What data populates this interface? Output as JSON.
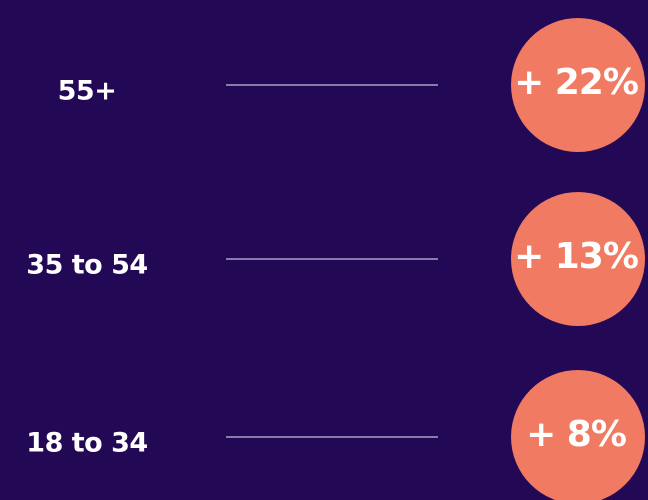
{
  "rows": [
    {
      "label": "55+",
      "value": "+ 22%"
    },
    {
      "label": "35 to 54",
      "value": "+ 13%"
    },
    {
      "label": "18 to 34",
      "value": "+ 8%"
    }
  ]
}
